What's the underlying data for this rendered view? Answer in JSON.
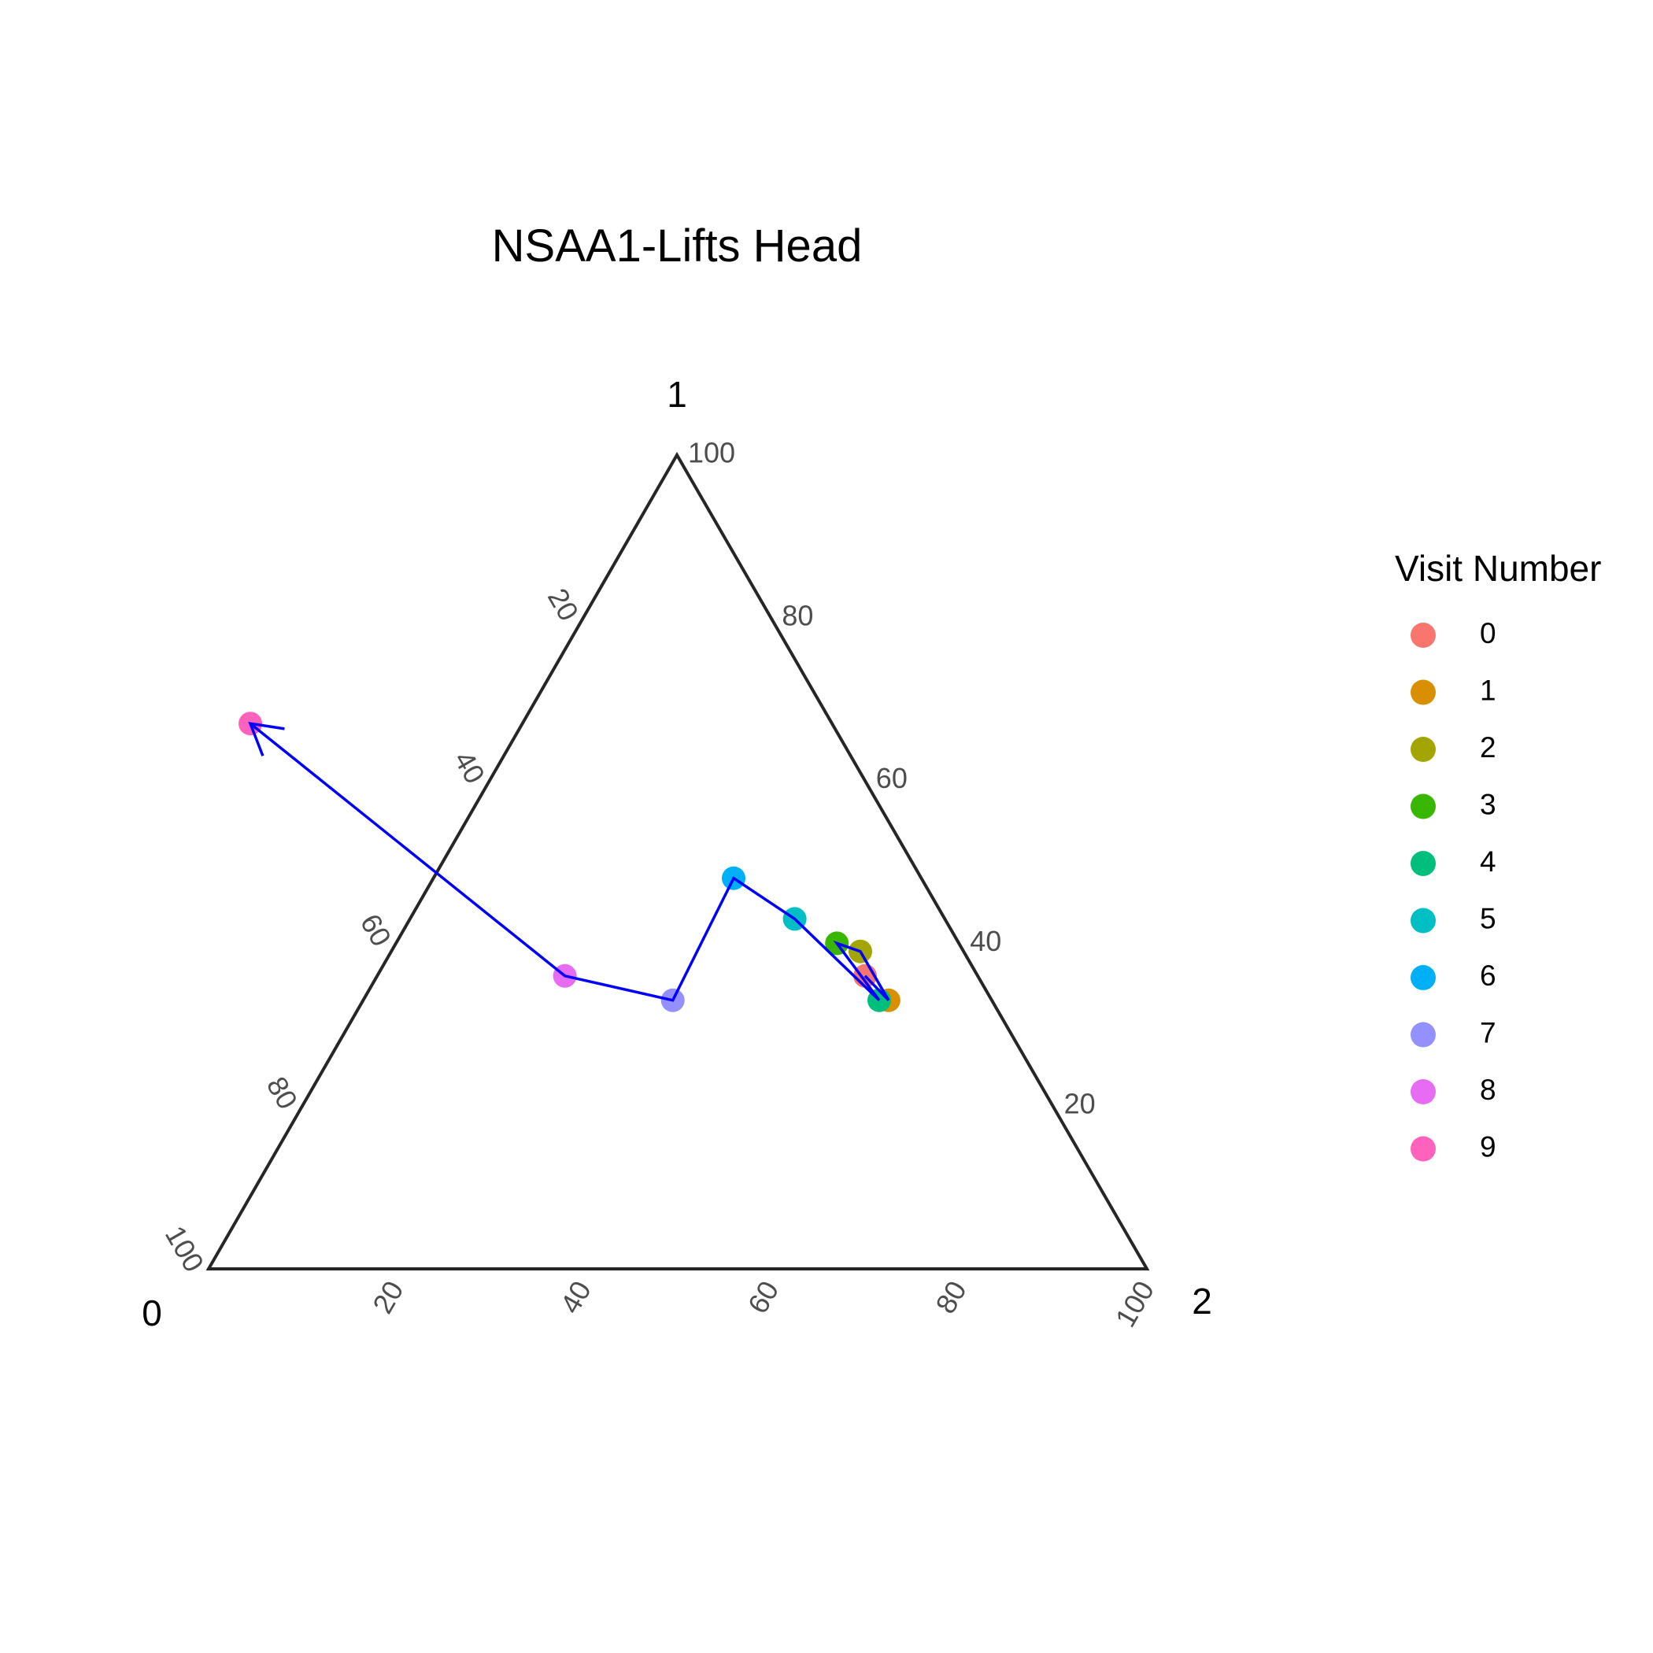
{
  "chart_data": {
    "type": "scatter",
    "subtype": "ternary",
    "title": "NSAA1-Lifts Head",
    "vertex_labels": {
      "left": "0",
      "top": "1",
      "right": "2"
    },
    "axis_ticks": [
      "20",
      "40",
      "60",
      "80",
      "100"
    ],
    "legend": {
      "title": "Visit Number",
      "placement": "right",
      "entries": [
        {
          "label": "0",
          "color": "#F8766D"
        },
        {
          "label": "1",
          "color": "#D89000"
        },
        {
          "label": "2",
          "color": "#A3A500"
        },
        {
          "label": "3",
          "color": "#39B600"
        },
        {
          "label": "4",
          "color": "#00BF7D"
        },
        {
          "label": "5",
          "color": "#00BFC4"
        },
        {
          "label": "6",
          "color": "#00B0F6"
        },
        {
          "label": "7",
          "color": "#9590FF"
        },
        {
          "label": "8",
          "color": "#E76BF3"
        },
        {
          "label": "9",
          "color": "#FF62BC"
        }
      ]
    },
    "points": [
      {
        "visit": "0",
        "p0": 12,
        "p1": 36,
        "p2": 52
      },
      {
        "visit": "1",
        "p0": 11,
        "p1": 33,
        "p2": 56
      },
      {
        "visit": "2",
        "p0": 11,
        "p1": 39,
        "p2": 50
      },
      {
        "visit": "3",
        "p0": 13,
        "p1": 40,
        "p2": 47
      },
      {
        "visit": "4",
        "p0": 12,
        "p1": 33,
        "p2": 55
      },
      {
        "visit": "5",
        "p0": 16,
        "p1": 43,
        "p2": 41
      },
      {
        "visit": "6",
        "p0": 20,
        "p1": 48,
        "p2": 32
      },
      {
        "visit": "7",
        "p0": 34,
        "p1": 33,
        "p2": 33
      },
      {
        "visit": "8",
        "p0": 44,
        "p1": 36,
        "p2": 20
      },
      {
        "visit": "9",
        "p0": 62,
        "p1": 67,
        "p2": -29
      }
    ],
    "path": {
      "color": "#0000FF",
      "order": [
        "0",
        "1",
        "2",
        "3",
        "4",
        "5",
        "6",
        "7",
        "8",
        "9"
      ],
      "arrow_at_end": true
    },
    "colors": {
      "axis": "#262626",
      "tick_text": "#4d4d4d",
      "background": "#FFFFFF"
    }
  }
}
